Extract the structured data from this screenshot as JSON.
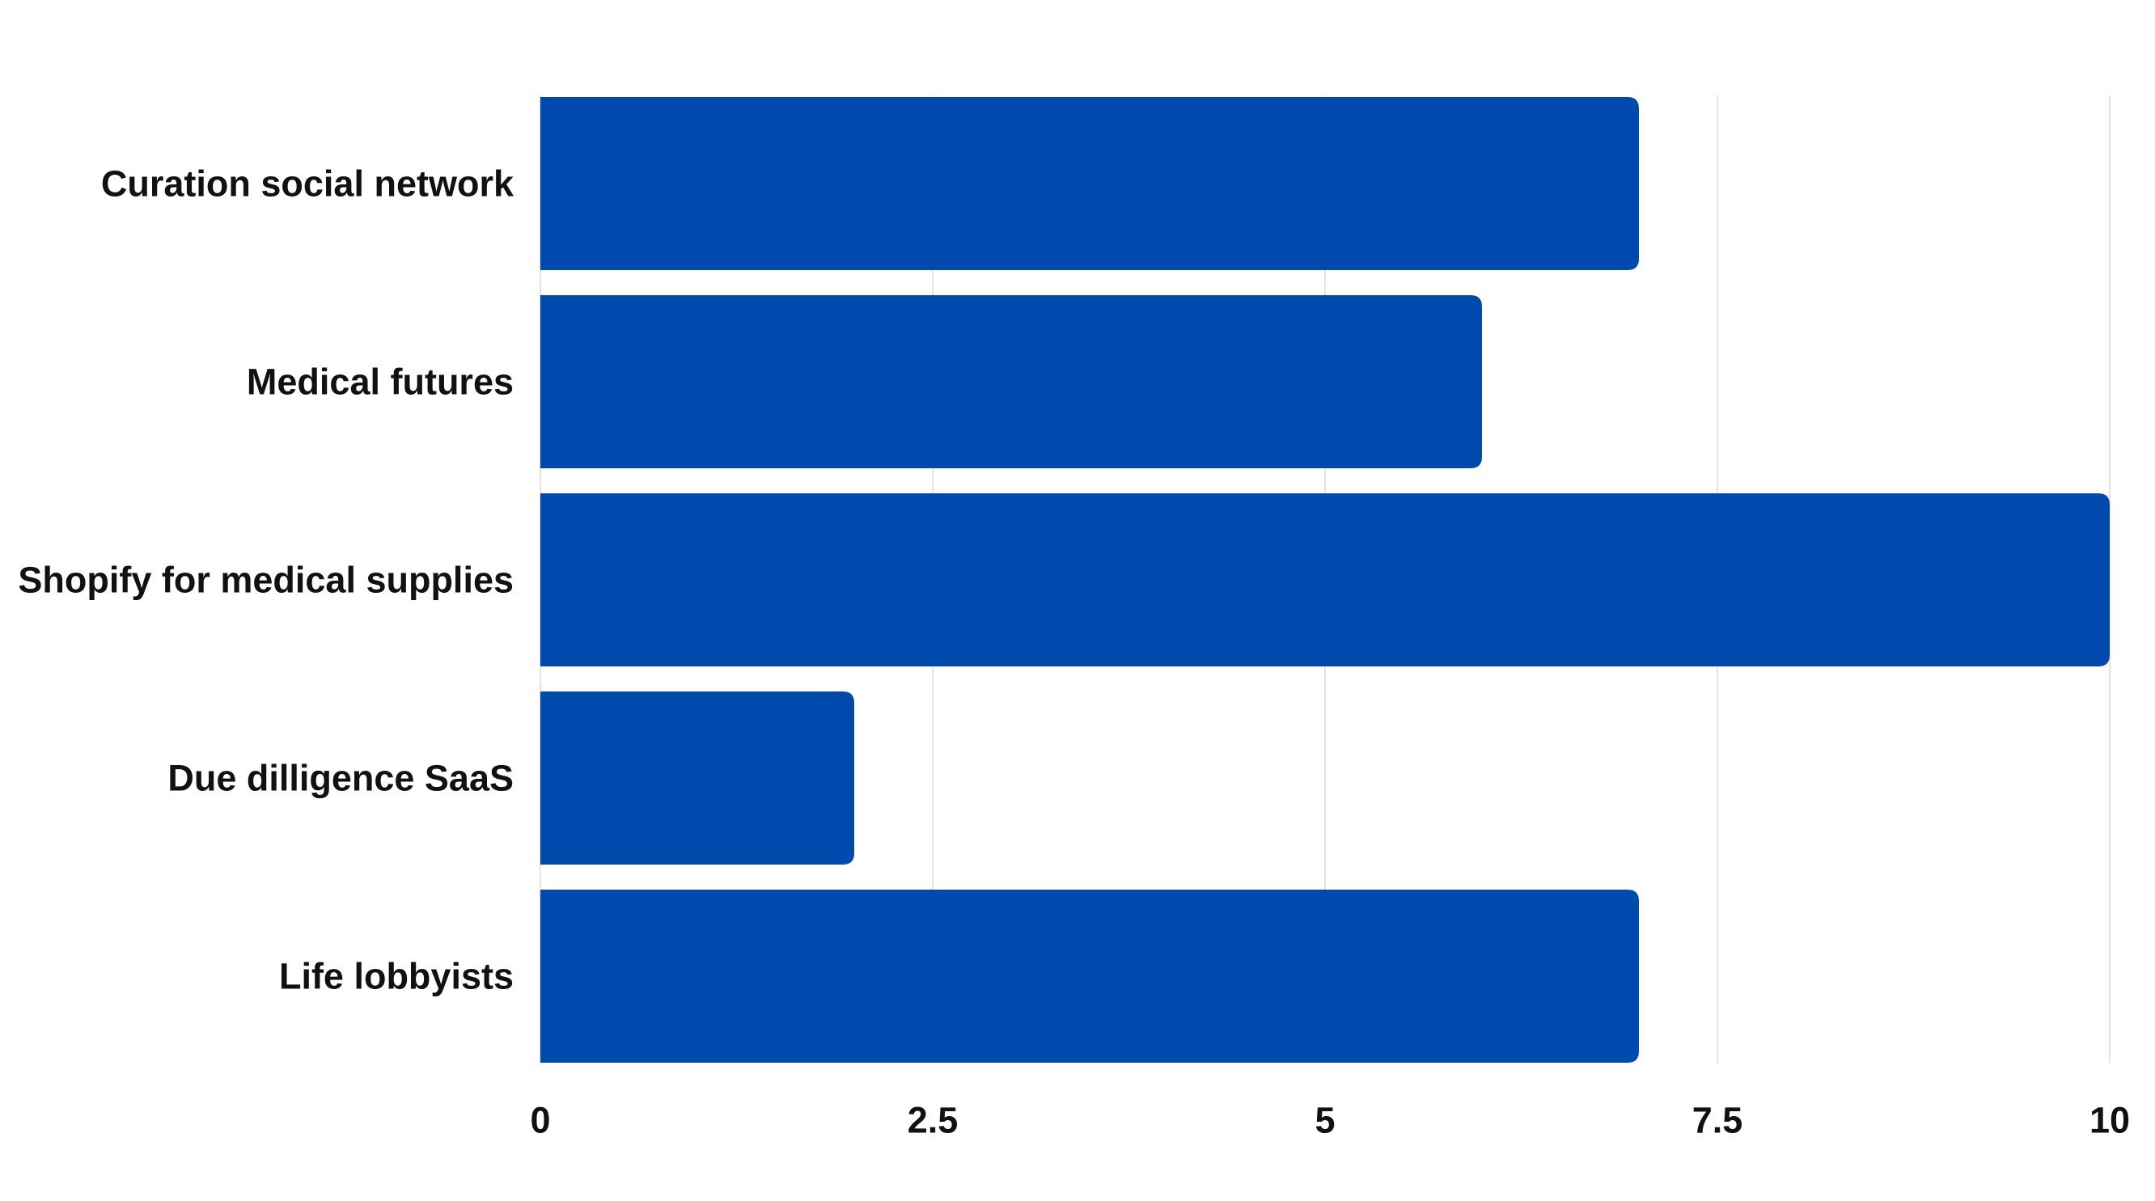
{
  "chart_data": {
    "type": "bar",
    "orientation": "horizontal",
    "categories": [
      "Curation social network",
      "Medical futures",
      "Shopify for medical supplies",
      "Due dilligence SaaS",
      "Life lobbyists"
    ],
    "values": [
      7,
      6,
      10,
      2,
      7
    ],
    "xlim": [
      0,
      10
    ],
    "xticks": [
      0,
      2.5,
      5,
      7.5,
      10
    ],
    "xtick_labels": [
      "0",
      "2.5",
      "5",
      "7.5",
      "10"
    ],
    "grid": "vertical",
    "legend": "none",
    "title": "",
    "xlabel": "",
    "ylabel": "",
    "colors": {
      "bar": "#004aad",
      "grid": "#e3e3e3",
      "text": "#111111",
      "background": "#ffffff"
    }
  }
}
